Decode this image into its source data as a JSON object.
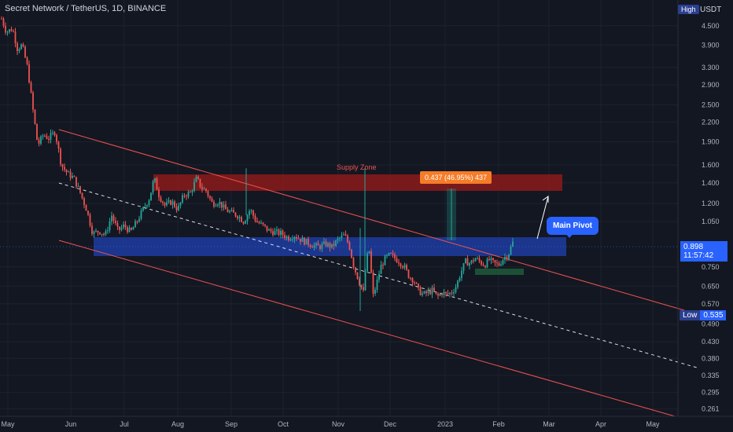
{
  "header": {
    "title": "Secret Network / TetherUS, 1D, BINANCE",
    "high_badge": "High",
    "currency": "USDT"
  },
  "price_axis": {
    "ticks": [
      "4.500",
      "3.900",
      "3.300",
      "2.900",
      "2.500",
      "2.200",
      "1.900",
      "1.600",
      "1.400",
      "1.200",
      "1.050",
      "0.750",
      "0.650",
      "0.570",
      "0.490",
      "0.430",
      "0.380",
      "0.335",
      "0.295",
      "0.261"
    ],
    "current_price": "0.898",
    "countdown": "11:57:42",
    "low_label": "Low",
    "low_value": "0.535"
  },
  "time_axis": {
    "ticks": [
      "May",
      "Jun",
      "Jul",
      "Aug",
      "Sep",
      "Oct",
      "Nov",
      "Dec",
      "2023",
      "Feb",
      "Mar",
      "Apr",
      "May"
    ]
  },
  "annotations": {
    "supply_zone": "Supply Zone",
    "measure": "0.437 (46.95%) 437",
    "main_pivot": "Main Pivot"
  },
  "colors": {
    "background": "#131722",
    "bull": "#26a69a",
    "bear": "#ef5350",
    "supply_zone": "#8b1a1a",
    "pivot_zone": "#1e3fa8",
    "channel": "#ef5350",
    "badge": "#2962ff",
    "measure": "#f57c28"
  },
  "chart_data": {
    "type": "candlestick",
    "symbol": "Secret Network / TetherUS",
    "interval": "1D",
    "exchange": "BINANCE",
    "price_scale": "log",
    "ylim": [
      0.25,
      5.2
    ],
    "x_range": [
      "2022-05",
      "2023-05"
    ],
    "current_price": 0.898,
    "low": 0.535,
    "path": [
      [
        0,
        4.9
      ],
      [
        8,
        4.3
      ],
      [
        16,
        4.4
      ],
      [
        22,
        3.8
      ],
      [
        28,
        3.9
      ],
      [
        35,
        3.3
      ],
      [
        42,
        2.4
      ],
      [
        48,
        1.85
      ],
      [
        55,
        2.0
      ],
      [
        62,
        1.95
      ],
      [
        70,
        2.05
      ],
      [
        78,
        1.6
      ],
      [
        86,
        1.5
      ],
      [
        94,
        1.45
      ],
      [
        102,
        1.3
      ],
      [
        110,
        1.15
      ],
      [
        118,
        0.96
      ],
      [
        126,
        0.98
      ],
      [
        134,
        0.95
      ],
      [
        142,
        1.1
      ],
      [
        150,
        0.98
      ],
      [
        158,
        1.02
      ],
      [
        166,
        0.97
      ],
      [
        174,
        1.05
      ],
      [
        182,
        1.15
      ],
      [
        190,
        1.25
      ],
      [
        196,
        1.45
      ],
      [
        202,
        1.28
      ],
      [
        210,
        1.18
      ],
      [
        218,
        1.22
      ],
      [
        226,
        1.15
      ],
      [
        234,
        1.28
      ],
      [
        242,
        1.3
      ],
      [
        250,
        1.45
      ],
      [
        256,
        1.35
      ],
      [
        262,
        1.32
      ],
      [
        270,
        1.2
      ],
      [
        278,
        1.22
      ],
      [
        286,
        1.15
      ],
      [
        294,
        1.12
      ],
      [
        302,
        1.1
      ],
      [
        310,
        1.05
      ],
      [
        318,
        1.15
      ],
      [
        326,
        1.05
      ],
      [
        334,
        1.02
      ],
      [
        342,
        0.98
      ],
      [
        350,
        0.97
      ],
      [
        358,
        0.96
      ],
      [
        366,
        0.93
      ],
      [
        374,
        0.95
      ],
      [
        382,
        0.92
      ],
      [
        390,
        0.9
      ],
      [
        398,
        0.88
      ],
      [
        406,
        0.87
      ],
      [
        414,
        0.89
      ],
      [
        422,
        0.87
      ],
      [
        430,
        0.92
      ],
      [
        438,
        0.95
      ],
      [
        444,
        0.88
      ],
      [
        450,
        0.75
      ],
      [
        456,
        0.68
      ],
      [
        462,
        0.62
      ],
      [
        466,
        0.8
      ],
      [
        470,
        0.85
      ],
      [
        474,
        0.6
      ],
      [
        478,
        0.65
      ],
      [
        484,
        0.75
      ],
      [
        490,
        0.8
      ],
      [
        496,
        0.82
      ],
      [
        502,
        0.8
      ],
      [
        508,
        0.78
      ],
      [
        514,
        0.75
      ],
      [
        520,
        0.7
      ],
      [
        526,
        0.68
      ],
      [
        532,
        0.63
      ],
      [
        538,
        0.61
      ],
      [
        544,
        0.62
      ],
      [
        550,
        0.63
      ],
      [
        556,
        0.6
      ],
      [
        562,
        0.62
      ],
      [
        568,
        0.61
      ],
      [
        574,
        0.62
      ],
      [
        580,
        0.65
      ],
      [
        586,
        0.72
      ],
      [
        592,
        0.78
      ],
      [
        598,
        0.77
      ],
      [
        604,
        0.8
      ],
      [
        610,
        0.78
      ],
      [
        616,
        0.76
      ],
      [
        622,
        0.79
      ],
      [
        628,
        0.77
      ],
      [
        634,
        0.76
      ],
      [
        640,
        0.8
      ],
      [
        646,
        0.82
      ],
      [
        652,
        0.898
      ]
    ],
    "drawings": {
      "supply_zone": [
        1.34,
        1.56
      ],
      "pivot_zone": [
        0.83,
        0.96
      ],
      "accumulation_box": [
        0.73,
        0.75
      ]
    }
  }
}
